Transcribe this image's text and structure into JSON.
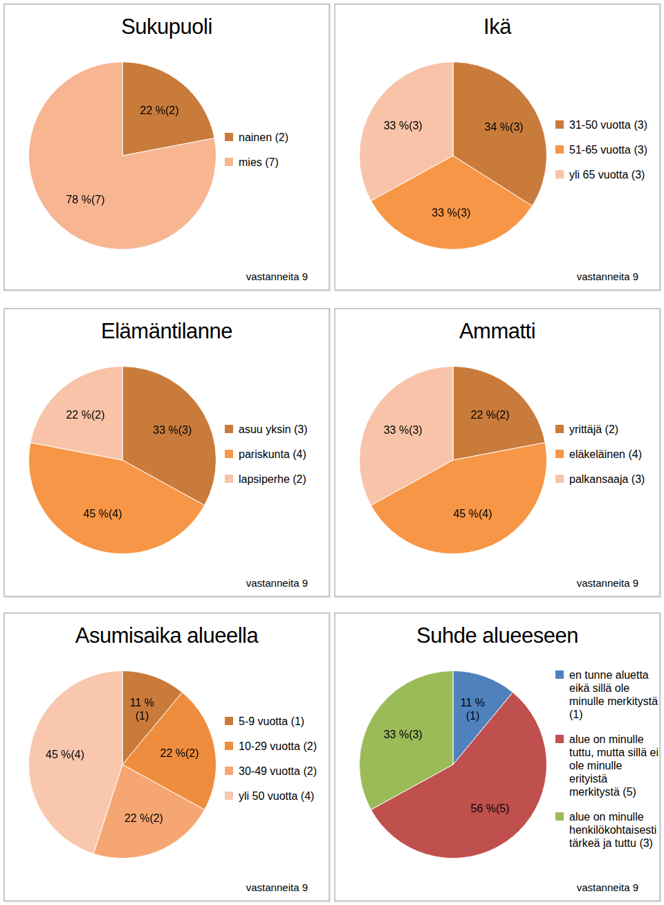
{
  "chart_data": [
    {
      "type": "pie",
      "title": "Sukupuoli",
      "subtitle": "vastanneita 9",
      "categories": [
        "nainen (2)",
        "mies (7)"
      ],
      "values": [
        22,
        78
      ],
      "value_labels": [
        "22 %(2)",
        "78 %(7)"
      ],
      "colors": [
        "#c97b3c",
        "#f7b592"
      ],
      "data_labels": true,
      "legend": "right"
    },
    {
      "type": "pie",
      "title": "Ikä",
      "subtitle": "vastanneita 9",
      "categories": [
        "31-50 vuotta (3)",
        "51-65 vuotta (3)",
        "yli 65 vuotta (3)"
      ],
      "values": [
        34,
        33,
        33
      ],
      "value_labels": [
        "34 %(3)",
        "33 %(3)",
        "33 %(3)"
      ],
      "colors": [
        "#c97b3c",
        "#f79646",
        "#f8c3a8"
      ],
      "data_labels": true,
      "legend": "right"
    },
    {
      "type": "pie",
      "title": "Elämäntilanne",
      "subtitle": "vastanneita 9",
      "categories": [
        "asuu yksin (3)",
        "pariskunta (4)",
        "lapsiperhe (2)"
      ],
      "values": [
        33,
        45,
        22
      ],
      "value_labels": [
        "33 %(3)",
        "45 %(4)",
        "22 %(2)"
      ],
      "colors": [
        "#c97b3c",
        "#f79646",
        "#f8c3a8"
      ],
      "data_labels": true,
      "legend": "right"
    },
    {
      "type": "pie",
      "title": "Ammatti",
      "subtitle": "vastanneita 9",
      "categories": [
        "yrittäjä (2)",
        "eläkeläinen (4)",
        "palkansaaja (3)"
      ],
      "values": [
        22,
        45,
        33
      ],
      "value_labels": [
        "22 %(2)",
        "45 %(4)",
        "33 %(3)"
      ],
      "colors": [
        "#c97b3c",
        "#f79646",
        "#f8c3a8"
      ],
      "data_labels": true,
      "legend": "right"
    },
    {
      "type": "pie",
      "title": "Asumisaika alueella",
      "subtitle": "vastanneita 9",
      "categories": [
        "5-9 vuotta (1)",
        "10-29 vuotta (2)",
        "30-49 vuotta (2)",
        "yli 50 vuotta (4)"
      ],
      "values": [
        11,
        22,
        22,
        45
      ],
      "value_labels": [
        "11 %(1)",
        "22 %(2)",
        "22 %(2)",
        "45 %(4)"
      ],
      "colors": [
        "#c97b3c",
        "#ef8d3e",
        "#f6a673",
        "#f8c7ae"
      ],
      "data_labels": true,
      "legend": "right"
    },
    {
      "type": "pie",
      "title": "Suhde alueeseen",
      "subtitle": "vastanneita 9",
      "categories": [
        "en tunne aluetta eikä sillä ole minulle merkitystä (1)",
        "alue on minulle tuttu, mutta sillä ei ole minulle erityistä merkitystä (5)",
        "alue on minulle henkilökohtaisesti tärkeä ja tuttu (3)"
      ],
      "values": [
        11,
        56,
        33
      ],
      "value_labels": [
        "11 %(1)",
        "56 %(5)",
        "33 %(3)"
      ],
      "colors": [
        "#4f81bd",
        "#c0504d",
        "#9bbb59"
      ],
      "data_labels": true,
      "legend": "right"
    }
  ]
}
